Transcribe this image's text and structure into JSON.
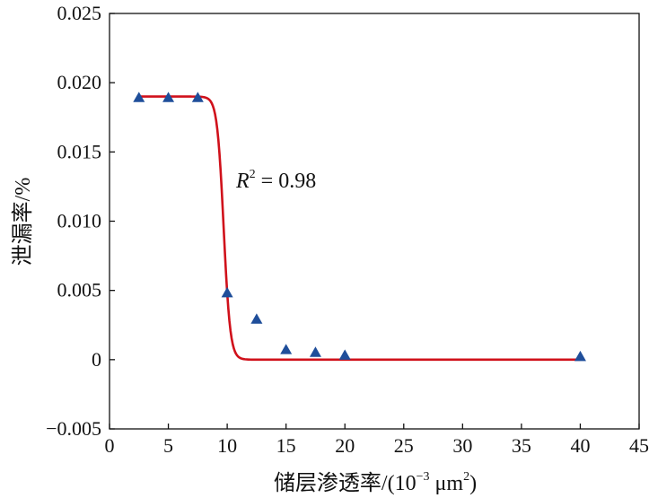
{
  "chart_data": {
    "type": "scatter",
    "title": "",
    "xlabel": "储层渗透率/(10",
    "xlabel_exp": "−3",
    "xlabel_unit": " μm",
    "xlabel_unit_exp": "2",
    "xlabel_close": ")",
    "ylabel": "泄漏率/%",
    "xlim": [
      0,
      45
    ],
    "ylim": [
      -0.005,
      0.025
    ],
    "x_ticks": [
      0,
      5,
      10,
      15,
      20,
      25,
      30,
      35,
      40,
      45
    ],
    "x_tick_labels": [
      "0",
      "5",
      "10",
      "15",
      "20",
      "25",
      "30",
      "35",
      "40",
      "45"
    ],
    "y_ticks": [
      -0.005,
      0,
      0.005,
      0.01,
      0.015,
      0.02,
      0.025
    ],
    "y_tick_labels": [
      "−0.005",
      "0",
      "0.005",
      "0.010",
      "0.015",
      "0.020",
      "0.025"
    ],
    "grid": false,
    "legend": "none",
    "series": [
      {
        "kind": "points",
        "marker": "triangle",
        "color": "#1f4e9a",
        "points": [
          {
            "x": 2.5,
            "y": 0.0189
          },
          {
            "x": 5.0,
            "y": 0.0189
          },
          {
            "x": 7.5,
            "y": 0.0189
          },
          {
            "x": 10.0,
            "y": 0.0048
          },
          {
            "x": 12.5,
            "y": 0.0029
          },
          {
            "x": 15.0,
            "y": 0.0007
          },
          {
            "x": 17.5,
            "y": 0.0005
          },
          {
            "x": 20.0,
            "y": 0.0003
          },
          {
            "x": 40.0,
            "y": 0.0002
          }
        ]
      },
      {
        "kind": "fit",
        "color": "#d0111b",
        "model": "logistic",
        "upper": 0.019,
        "lower": 0.0,
        "midpoint": 9.7,
        "steepness": 3.6,
        "x_range": [
          2.5,
          40.0
        ]
      }
    ],
    "annotation": {
      "label": "R",
      "sup": "2",
      "value": " = 0.98"
    }
  }
}
